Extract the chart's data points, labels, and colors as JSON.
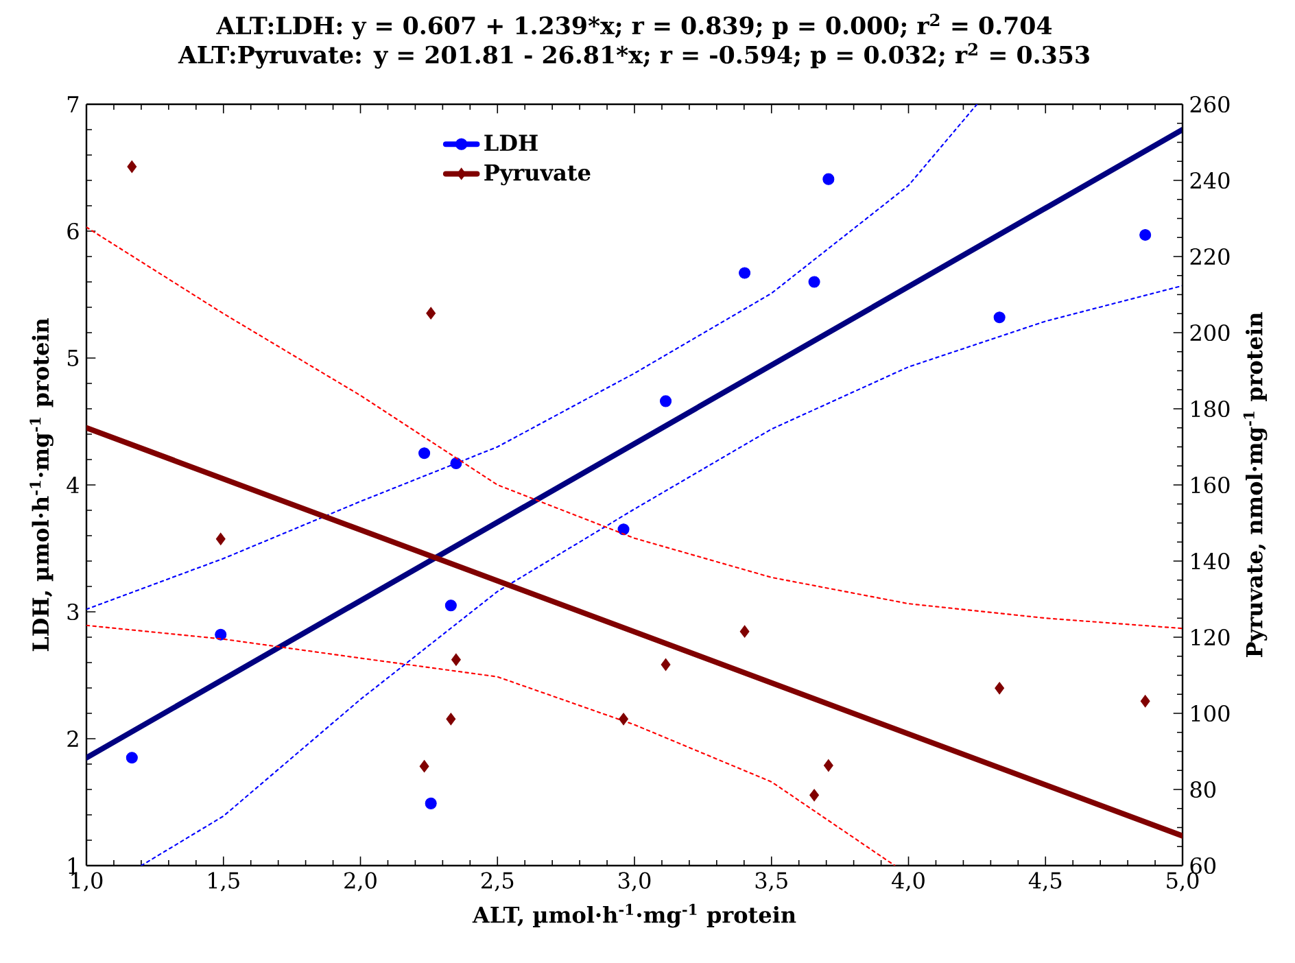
{
  "chart_data": {
    "type": "scatter",
    "title": "ALT:LDH:   y = 0.607 + 1.239*x;  r = 0.839; p = 0.000; r$^{2}$ = 0.704",
    "subtitle": "ALT:Pyruvate:   y = 201.81 - 26.81*x;  r = -0.594; p = 0.032; r$^{2}$ = 0.353",
    "xlabel": "ALT, µmol·h$^{-1}$·mg$^{-1}$ protein",
    "ylabel": "LDH, µmol·h$^{-1}$·mg$^{-1}$ protein",
    "y2label": "Pyruvate, nmol·mg$^{-1}$ protein",
    "xlim": [
      1,
      5
    ],
    "ylim": [
      1,
      7
    ],
    "y2lim": [
      60,
      260
    ],
    "xticks": [
      {
        "value": 1.0,
        "label": "1,0"
      },
      {
        "value": 1.5,
        "label": "1,5"
      },
      {
        "value": 2.0,
        "label": "2,0"
      },
      {
        "value": 2.5,
        "label": "2,5"
      },
      {
        "value": 3.0,
        "label": "3,0"
      },
      {
        "value": 3.5,
        "label": "3,5"
      },
      {
        "value": 4.0,
        "label": "4,0"
      },
      {
        "value": 4.5,
        "label": "4,5"
      },
      {
        "value": 5.0,
        "label": "5,0"
      }
    ],
    "yticks": [
      1,
      2,
      3,
      4,
      5,
      6,
      7
    ],
    "y2ticks": [
      60,
      80,
      100,
      120,
      140,
      160,
      180,
      200,
      220,
      240,
      260
    ],
    "legend": "top",
    "grid": false,
    "series": [
      {
        "name": "LDH",
        "type": "scatter",
        "marker": "circle",
        "color": "#0000ff",
        "x": [
          1.166,
          1.49,
          2.233,
          2.349,
          2.33,
          2.257,
          2.96,
          3.114,
          3.402,
          3.656,
          3.708,
          4.332,
          4.864
        ],
        "values": [
          1.85,
          2.82,
          4.25,
          4.17,
          3.05,
          1.49,
          3.65,
          4.66,
          5.67,
          5.6,
          6.41,
          5.32,
          5.97
        ]
      },
      {
        "name": "Pyruvate",
        "type": "scatter",
        "marker": "diamond",
        "axis": "y2",
        "color": "#800000",
        "x": [
          1.166,
          2.257,
          1.49,
          2.349,
          2.33,
          2.233,
          2.96,
          3.114,
          3.402,
          3.656,
          3.708,
          4.332,
          4.864
        ],
        "values": [
          243.6,
          205.1,
          145.8,
          114.1,
          98.5,
          86.1,
          98.5,
          112.8,
          121.5,
          78.5,
          86.3,
          106.6,
          103.2
        ]
      },
      {
        "type": "line",
        "color": "#000080",
        "line_style": "solid",
        "x": [
          1,
          5
        ],
        "values": [
          1.85,
          6.8
        ]
      },
      {
        "type": "line",
        "color": "#800000",
        "line_style": "solid",
        "axis": "y2",
        "x": [
          1,
          5
        ],
        "values": [
          175.0,
          67.8
        ]
      },
      {
        "type": "line",
        "color": "#0000ff",
        "line_style": "dotted",
        "x": [
          1,
          1.5,
          2,
          2.5,
          3,
          3.5,
          4,
          4.25
        ],
        "values": [
          3.02,
          3.42,
          3.87,
          4.3,
          4.88,
          5.51,
          6.36,
          7.0
        ]
      },
      {
        "type": "line",
        "color": "#0000ff",
        "line_style": "dotted",
        "x": [
          1.2,
          1.5,
          2,
          2.5,
          3,
          3.5,
          4,
          4.5,
          5
        ],
        "values": [
          1.0,
          1.39,
          2.31,
          3.16,
          3.81,
          4.44,
          4.93,
          5.29,
          5.57
        ]
      },
      {
        "type": "line",
        "color": "#ff0000",
        "line_style": "dotted",
        "axis": "y2",
        "x": [
          1,
          1.5,
          2,
          2.5,
          3,
          3.5,
          4,
          4.5,
          5
        ],
        "values": [
          227.7,
          205.0,
          183.5,
          160.0,
          146.0,
          135.7,
          128.8,
          125.0,
          122.3
        ]
      },
      {
        "type": "line",
        "color": "#ff0000",
        "line_style": "dotted",
        "axis": "y2",
        "x": [
          1,
          1.5,
          2,
          2.5,
          3,
          3.5,
          3.95
        ],
        "values": [
          123.1,
          119.5,
          114.5,
          109.6,
          97.0,
          82.0,
          60.0
        ]
      }
    ]
  }
}
